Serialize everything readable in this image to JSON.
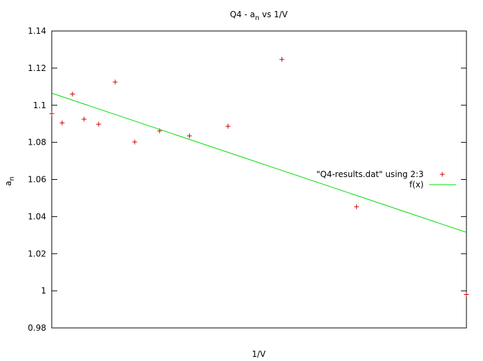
{
  "chart_data": {
    "type": "scatter",
    "title_main": "Q4 - a",
    "title_sub": "n",
    "title_tail": " vs 1/V",
    "xlabel": "1/V",
    "ylabel_main": "a",
    "ylabel_sub": "n",
    "ylim": [
      0.98,
      1.14
    ],
    "yticks": [
      0.98,
      1.0,
      1.02,
      1.04,
      1.06,
      1.08,
      1.1,
      1.12,
      1.14
    ],
    "ytick_labels": [
      "0.98",
      "1",
      "1.02",
      "1.04",
      "1.06",
      "1.08",
      "1.1",
      "1.12",
      "1.14"
    ],
    "xlim": [
      0,
      1
    ],
    "xticks_shown": false,
    "grid": false,
    "legend_position": "right",
    "series": [
      {
        "name": "\"Q4-results.dat\" using 2:3",
        "style": "points",
        "marker": "+",
        "color": "#cc0000",
        "x": [
          0.0,
          0.025,
          0.05,
          0.078,
          0.113,
          0.153,
          0.2,
          0.26,
          0.332,
          0.425,
          0.555,
          0.735,
          1.0
        ],
        "y": [
          1.0955,
          1.0905,
          1.106,
          1.0925,
          1.0898,
          1.1125,
          1.0802,
          1.0862,
          1.0835,
          1.0887,
          1.1247,
          1.0453,
          0.998
        ]
      },
      {
        "name": "f(x)",
        "style": "line",
        "color": "#00dd00",
        "x": [
          0,
          1
        ],
        "y": [
          1.1065,
          1.0315
        ]
      }
    ]
  }
}
